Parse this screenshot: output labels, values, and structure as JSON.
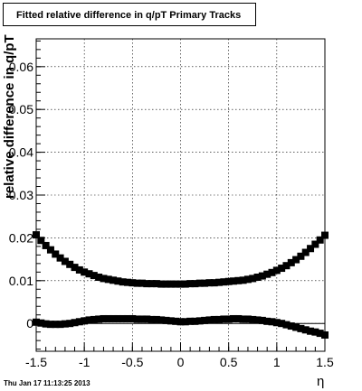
{
  "chart_data": {
    "type": "scatter",
    "title": "Fitted relative difference in q/pT  Primary Tracks",
    "xlabel": "η",
    "ylabel": "relative difference in q/pT",
    "xlim": [
      -1.5,
      1.5
    ],
    "ylim": [
      -0.0065,
      0.0665
    ],
    "x_ticks": [
      "-1.5",
      "-1",
      "-0.5",
      "0",
      "0.5",
      "1",
      "1.5"
    ],
    "y_ticks": [
      "0",
      "0.01",
      "0.02",
      "0.03",
      "0.04",
      "0.05",
      "0.06"
    ],
    "grid": true,
    "series": [
      {
        "values": [
          [
            -1.5,
            0.0207
          ],
          [
            -1.45,
            0.0194
          ],
          [
            -1.4,
            0.0182
          ],
          [
            -1.35,
            0.0172
          ],
          [
            -1.3,
            0.0162
          ],
          [
            -1.25,
            0.0153
          ],
          [
            -1.2,
            0.0145
          ],
          [
            -1.15,
            0.0138
          ],
          [
            -1.1,
            0.0131
          ],
          [
            -1.05,
            0.0125
          ],
          [
            -1.0,
            0.012
          ],
          [
            -0.95,
            0.0116
          ],
          [
            -0.9,
            0.0112
          ],
          [
            -0.85,
            0.0108
          ],
          [
            -0.8,
            0.0105
          ],
          [
            -0.75,
            0.0103
          ],
          [
            -0.7,
            0.0101
          ],
          [
            -0.65,
            0.0099
          ],
          [
            -0.6,
            0.0097
          ],
          [
            -0.55,
            0.0096
          ],
          [
            -0.5,
            0.0095
          ],
          [
            -0.45,
            0.0094
          ],
          [
            -0.4,
            0.0094
          ],
          [
            -0.35,
            0.0093
          ],
          [
            -0.3,
            0.0093
          ],
          [
            -0.25,
            0.0093
          ],
          [
            -0.2,
            0.0092
          ],
          [
            -0.15,
            0.0092
          ],
          [
            -0.1,
            0.0092
          ],
          [
            -0.05,
            0.0092
          ],
          [
            0.0,
            0.0092
          ],
          [
            0.05,
            0.0092
          ],
          [
            0.1,
            0.0093
          ],
          [
            0.15,
            0.0093
          ],
          [
            0.2,
            0.0094
          ],
          [
            0.25,
            0.0094
          ],
          [
            0.3,
            0.0095
          ],
          [
            0.35,
            0.0095
          ],
          [
            0.4,
            0.0096
          ],
          [
            0.45,
            0.0097
          ],
          [
            0.5,
            0.0098
          ],
          [
            0.55,
            0.0099
          ],
          [
            0.6,
            0.01
          ],
          [
            0.65,
            0.0101
          ],
          [
            0.7,
            0.0103
          ],
          [
            0.75,
            0.0105
          ],
          [
            0.8,
            0.0108
          ],
          [
            0.85,
            0.0111
          ],
          [
            0.9,
            0.0115
          ],
          [
            0.95,
            0.0119
          ],
          [
            1.0,
            0.0124
          ],
          [
            1.05,
            0.0129
          ],
          [
            1.1,
            0.0135
          ],
          [
            1.15,
            0.0142
          ],
          [
            1.2,
            0.0149
          ],
          [
            1.25,
            0.0157
          ],
          [
            1.3,
            0.0166
          ],
          [
            1.35,
            0.0175
          ],
          [
            1.4,
            0.0185
          ],
          [
            1.45,
            0.0195
          ],
          [
            1.5,
            0.0206
          ]
        ]
      },
      {
        "values": [
          [
            -1.5,
            0.0003
          ],
          [
            -1.45,
            0.0001
          ],
          [
            -1.4,
            -0.0001
          ],
          [
            -1.35,
            -0.0002
          ],
          [
            -1.3,
            -0.0002
          ],
          [
            -1.25,
            -0.0002
          ],
          [
            -1.2,
            -0.0001
          ],
          [
            -1.15,
            0.0
          ],
          [
            -1.1,
            0.0002
          ],
          [
            -1.05,
            0.0004
          ],
          [
            -1.0,
            0.0006
          ],
          [
            -0.95,
            0.0008
          ],
          [
            -0.9,
            0.0009
          ],
          [
            -0.85,
            0.001
          ],
          [
            -0.8,
            0.0011
          ],
          [
            -0.75,
            0.0011
          ],
          [
            -0.7,
            0.0011
          ],
          [
            -0.65,
            0.0011
          ],
          [
            -0.6,
            0.0011
          ],
          [
            -0.55,
            0.0011
          ],
          [
            -0.5,
            0.0011
          ],
          [
            -0.45,
            0.001
          ],
          [
            -0.4,
            0.001
          ],
          [
            -0.35,
            0.001
          ],
          [
            -0.3,
            0.0009
          ],
          [
            -0.25,
            0.0009
          ],
          [
            -0.2,
            0.0008
          ],
          [
            -0.15,
            0.0007
          ],
          [
            -0.1,
            0.0006
          ],
          [
            -0.05,
            0.0005
          ],
          [
            0.0,
            0.0004
          ],
          [
            0.05,
            0.0004
          ],
          [
            0.1,
            0.0005
          ],
          [
            0.15,
            0.0005
          ],
          [
            0.2,
            0.0006
          ],
          [
            0.25,
            0.0007
          ],
          [
            0.3,
            0.0008
          ],
          [
            0.35,
            0.0009
          ],
          [
            0.4,
            0.0009
          ],
          [
            0.45,
            0.001
          ],
          [
            0.5,
            0.001
          ],
          [
            0.55,
            0.0011
          ],
          [
            0.6,
            0.0011
          ],
          [
            0.65,
            0.001
          ],
          [
            0.7,
            0.001
          ],
          [
            0.75,
            0.0009
          ],
          [
            0.8,
            0.0008
          ],
          [
            0.85,
            0.0007
          ],
          [
            0.9,
            0.0005
          ],
          [
            0.95,
            0.0004
          ],
          [
            1.0,
            0.0002
          ],
          [
            1.05,
            0.0
          ],
          [
            1.1,
            -0.0003
          ],
          [
            1.15,
            -0.0006
          ],
          [
            1.2,
            -0.0009
          ],
          [
            1.25,
            -0.0012
          ],
          [
            1.3,
            -0.0015
          ],
          [
            1.35,
            -0.0018
          ],
          [
            1.4,
            -0.002
          ],
          [
            1.45,
            -0.0023
          ],
          [
            1.5,
            -0.0027
          ]
        ]
      }
    ]
  },
  "footer": {
    "timestamp": "Thu Jan 17 11:13:25 2013"
  }
}
